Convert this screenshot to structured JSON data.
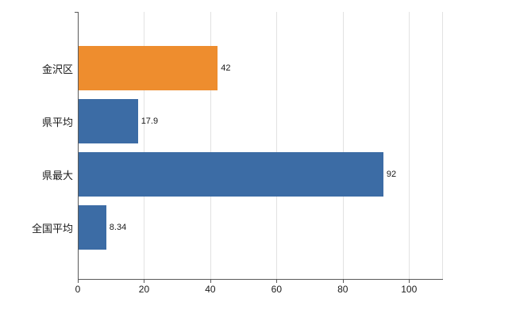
{
  "chart_data": {
    "type": "bar",
    "orientation": "horizontal",
    "title": "",
    "xlabel": "",
    "ylabel": "",
    "categories": [
      "金沢区",
      "県平均",
      "県最大",
      "全国平均"
    ],
    "values": [
      42,
      17.9,
      92,
      8.34
    ],
    "value_labels": [
      "42",
      "17.9",
      "92",
      "8.34"
    ],
    "bar_colors": [
      "#ee8d2e",
      "#3c6ca5",
      "#3c6ca5",
      "#3c6ca5"
    ],
    "xlim": [
      0,
      110
    ],
    "x_ticks": [
      0,
      20,
      40,
      60,
      80,
      100
    ],
    "x_tick_labels": [
      "0",
      "20",
      "40",
      "60",
      "80",
      "100"
    ],
    "grid": true,
    "legend": "none",
    "colors": {
      "highlight_bar": "#ee8d2e",
      "default_bar": "#3c6ca5",
      "axis": "#595959",
      "gridline": "#e2e2e2",
      "background": "#ffffff"
    }
  }
}
